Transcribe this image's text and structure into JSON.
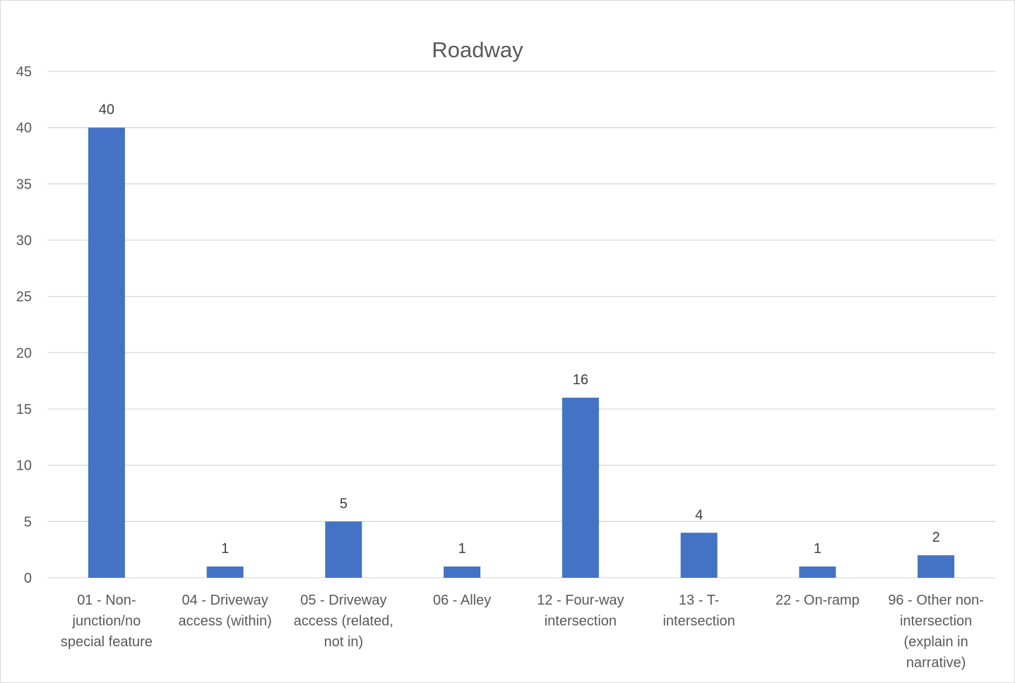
{
  "chart_data": {
    "type": "bar",
    "title": "Roadway",
    "xlabel": "",
    "ylabel": "",
    "ylim": [
      0,
      45
    ],
    "yticks": [
      0,
      5,
      10,
      15,
      20,
      25,
      30,
      35,
      40,
      45
    ],
    "grid": true,
    "legend": "none",
    "bar_color": "#4472C4",
    "categories": [
      [
        "01 - Non-",
        "junction/no",
        "special feature"
      ],
      [
        "04 - Driveway",
        "access (within)"
      ],
      [
        "05 - Driveway",
        "access (related,",
        "not in)"
      ],
      [
        "06 - Alley"
      ],
      [
        "12 - Four-way",
        "intersection"
      ],
      [
        "13 - T-",
        "intersection"
      ],
      [
        "22 - On-ramp"
      ],
      [
        "96 - Other non-",
        "intersection",
        "(explain in",
        "narrative)"
      ]
    ],
    "values": [
      40,
      1,
      5,
      1,
      16,
      4,
      1,
      2
    ],
    "data_labels": [
      "40",
      "1",
      "5",
      "1",
      "16",
      "4",
      "1",
      "2"
    ]
  }
}
